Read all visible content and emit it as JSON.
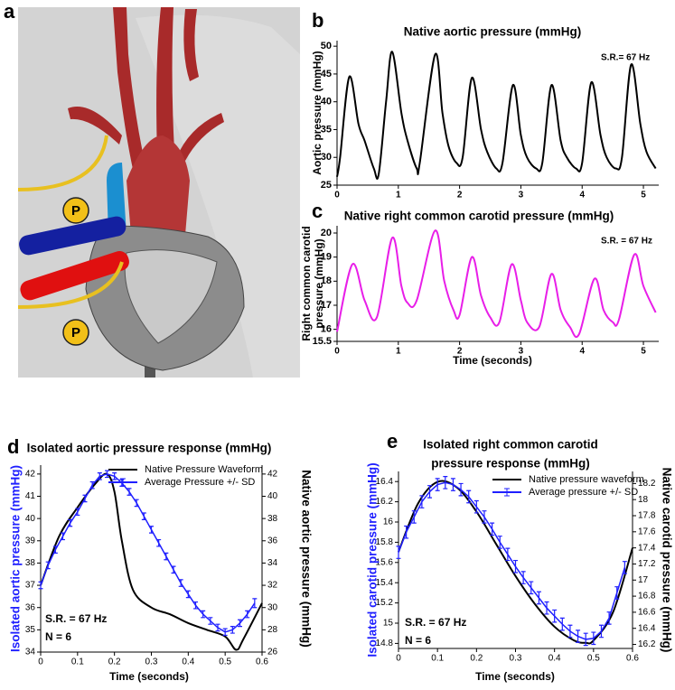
{
  "illustration": {
    "panel": "a",
    "pump_labels": [
      "P",
      "P"
    ]
  },
  "chart_data": [
    {
      "panel": "b",
      "type": "line",
      "title": "Native aortic pressure (mmHg)",
      "ylabel": [
        "Aortic pressure (mmHg)"
      ],
      "annotations": [
        "S.R.= 67 Hz"
      ],
      "xlim": [
        0,
        5.25
      ],
      "xticks": [
        0,
        1,
        2,
        3,
        4,
        5
      ],
      "ylim": [
        25,
        51
      ],
      "yticks": [
        25,
        30,
        35,
        40,
        45,
        50
      ],
      "series": [
        {
          "color": "#000000",
          "x": [
            0,
            0.05,
            0.2,
            0.35,
            0.45,
            0.6,
            0.68,
            0.8,
            0.9,
            1.05,
            1.15,
            1.3,
            1.35,
            1.6,
            1.72,
            1.82,
            1.95,
            2.05,
            2.2,
            2.35,
            2.45,
            2.6,
            2.7,
            2.87,
            3.0,
            3.1,
            3.25,
            3.35,
            3.5,
            3.65,
            3.75,
            3.9,
            4.0,
            4.15,
            4.3,
            4.4,
            4.55,
            4.65,
            4.8,
            4.95,
            5.05,
            5.2
          ],
          "values": [
            26.5,
            30,
            44.5,
            36,
            33,
            28,
            27,
            40,
            49,
            38,
            33,
            28,
            29,
            48.5,
            38,
            32,
            29,
            30,
            44.3,
            35,
            31,
            28,
            29,
            43,
            34,
            30,
            28,
            29,
            43,
            33,
            30,
            28,
            29,
            43.5,
            34,
            30,
            28,
            30,
            46.7,
            36,
            31,
            28
          ]
        }
      ]
    },
    {
      "panel": "c",
      "type": "line",
      "title": "Native right common carotid pressure (mmHg)",
      "ylabel": [
        "Right common carotid",
        "pressure (mmHg)"
      ],
      "xlabel": "Time (seconds)",
      "annotations": [
        "S.R. = 67 Hz"
      ],
      "xlim": [
        0,
        5.25
      ],
      "xticks": [
        0,
        1,
        2,
        3,
        4,
        5
      ],
      "ylim": [
        15.5,
        20.3
      ],
      "yticks": [
        15.5,
        16,
        17,
        18,
        19,
        20
      ],
      "series": [
        {
          "color": "#e81ee8",
          "x": [
            0,
            0.25,
            0.45,
            0.65,
            0.9,
            1.05,
            1.15,
            1.3,
            1.6,
            1.75,
            1.9,
            2.0,
            2.2,
            2.35,
            2.5,
            2.65,
            2.85,
            3.0,
            3.1,
            3.3,
            3.5,
            3.65,
            3.8,
            3.95,
            4.2,
            4.35,
            4.5,
            4.6,
            4.85,
            5.0,
            5.2
          ],
          "values": [
            15.9,
            18.7,
            17.2,
            16.5,
            19.8,
            17.8,
            17.1,
            17.2,
            20.1,
            18,
            16.8,
            16.6,
            19,
            17.4,
            16.5,
            16.3,
            18.7,
            17.2,
            16.3,
            16.1,
            18.3,
            16.8,
            16.1,
            15.8,
            18.1,
            16.8,
            16.3,
            16.4,
            19.1,
            17.8,
            16.7
          ]
        }
      ]
    },
    {
      "panel": "d",
      "type": "line",
      "title": "Isolated aortic pressure response (mmHg)",
      "ylabel": [
        "Isolated aortic pressure (mmHg)"
      ],
      "y2label": "Native aortic pressure (mmHg)",
      "xlabel": "Time (seconds)",
      "annotations": [
        "S.R. = 67 Hz",
        "N = 6"
      ],
      "legend": "upper right",
      "xlim": [
        0,
        0.6
      ],
      "xticks": [
        0,
        0.1,
        0.2,
        0.3,
        0.4,
        0.5,
        0.6
      ],
      "ylim": [
        34,
        42.4
      ],
      "yticks": [
        34,
        35,
        36,
        37,
        38,
        39,
        40,
        41,
        42
      ],
      "y2lim": [
        26,
        42.8
      ],
      "y2ticks": [
        26,
        28,
        30,
        32,
        34,
        36,
        38,
        40,
        42
      ],
      "series": [
        {
          "name": "Native Pressure Waveform",
          "color": "#000000",
          "axis": "y2",
          "x": [
            0,
            0.05,
            0.1,
            0.15,
            0.18,
            0.2,
            0.22,
            0.25,
            0.3,
            0.35,
            0.4,
            0.45,
            0.5,
            0.53,
            0.55,
            0.6
          ],
          "values": [
            32,
            36.4,
            39,
            41.2,
            42,
            40.4,
            36,
            31.6,
            30,
            29.4,
            28.6,
            28,
            27.4,
            26.2,
            27.2,
            30.4
          ]
        },
        {
          "name": "Average Pressure +/- SD",
          "color": "#1f1fff",
          "x": [
            0,
            0.02,
            0.04,
            0.06,
            0.08,
            0.1,
            0.12,
            0.14,
            0.16,
            0.18,
            0.2,
            0.22,
            0.24,
            0.26,
            0.28,
            0.3,
            0.32,
            0.34,
            0.36,
            0.38,
            0.4,
            0.42,
            0.44,
            0.46,
            0.48,
            0.5,
            0.52,
            0.54,
            0.56,
            0.58
          ],
          "values": [
            37.0,
            37.9,
            38.6,
            39.2,
            39.8,
            40.3,
            40.9,
            41.5,
            41.9,
            42.0,
            41.9,
            41.6,
            41.2,
            40.7,
            40.1,
            39.5,
            38.9,
            38.3,
            37.7,
            37.1,
            36.6,
            36.1,
            35.7,
            35.4,
            35.1,
            34.9,
            35.0,
            35.3,
            35.7,
            36.2
          ],
          "errors": [
            0.15,
            0.15,
            0.15,
            0.15,
            0.15,
            0.15,
            0.15,
            0.15,
            0.15,
            0.15,
            0.15,
            0.15,
            0.15,
            0.15,
            0.15,
            0.15,
            0.15,
            0.15,
            0.15,
            0.15,
            0.15,
            0.15,
            0.15,
            0.15,
            0.15,
            0.15,
            0.15,
            0.15,
            0.15,
            0.2
          ]
        }
      ]
    },
    {
      "panel": "e",
      "type": "line",
      "title": [
        "Isolated right common carotid",
        "pressure response (mmHg)"
      ],
      "ylabel": [
        "Isolated carotid pressure (mmHg)"
      ],
      "y2label": "Native carotid pressure (mmHg)",
      "xlabel": "Time (seconds)",
      "annotations": [
        "S.R. = 67 Hz",
        "N = 6"
      ],
      "legend": "upper right",
      "xlim": [
        0,
        0.6
      ],
      "xticks": [
        0,
        0.1,
        0.2,
        0.3,
        0.4,
        0.5,
        0.6
      ],
      "ylim": [
        14.75,
        16.5
      ],
      "yticks": [
        14.8,
        15,
        15.2,
        15.4,
        15.6,
        15.8,
        16,
        16.2,
        16.4
      ],
      "y2lim": [
        16.15,
        18.35
      ],
      "y2ticks": [
        16.2,
        16.4,
        16.6,
        16.8,
        17,
        17.2,
        17.4,
        17.6,
        17.8,
        18,
        18.2
      ],
      "series": [
        {
          "name": "Native pressure waveform",
          "color": "#000000",
          "axis": "y2",
          "x": [
            0,
            0.05,
            0.1,
            0.15,
            0.2,
            0.25,
            0.3,
            0.35,
            0.4,
            0.45,
            0.48,
            0.5,
            0.55,
            0.6
          ],
          "values": [
            17.35,
            17.95,
            18.22,
            18.15,
            17.85,
            17.45,
            17.05,
            16.7,
            16.42,
            16.25,
            16.22,
            16.25,
            16.6,
            17.4
          ]
        },
        {
          "name": "Average pressure +/- SD",
          "color": "#1f1fff",
          "x": [
            0,
            0.02,
            0.04,
            0.06,
            0.08,
            0.1,
            0.12,
            0.14,
            0.16,
            0.18,
            0.2,
            0.22,
            0.24,
            0.26,
            0.28,
            0.3,
            0.32,
            0.34,
            0.36,
            0.38,
            0.4,
            0.42,
            0.44,
            0.46,
            0.48,
            0.5,
            0.52,
            0.54,
            0.56,
            0.58
          ],
          "values": [
            15.7,
            15.9,
            16.05,
            16.2,
            16.3,
            16.37,
            16.39,
            16.37,
            16.32,
            16.25,
            16.15,
            16.05,
            15.93,
            15.8,
            15.68,
            15.56,
            15.45,
            15.35,
            15.25,
            15.15,
            15.07,
            14.99,
            14.92,
            14.87,
            14.84,
            14.85,
            14.92,
            15.05,
            15.3,
            15.55
          ],
          "errors": [
            0.06,
            0.06,
            0.06,
            0.06,
            0.06,
            0.06,
            0.06,
            0.06,
            0.06,
            0.06,
            0.06,
            0.06,
            0.06,
            0.06,
            0.06,
            0.06,
            0.06,
            0.06,
            0.06,
            0.06,
            0.06,
            0.06,
            0.06,
            0.06,
            0.06,
            0.06,
            0.06,
            0.06,
            0.06,
            0.06
          ]
        }
      ]
    }
  ]
}
